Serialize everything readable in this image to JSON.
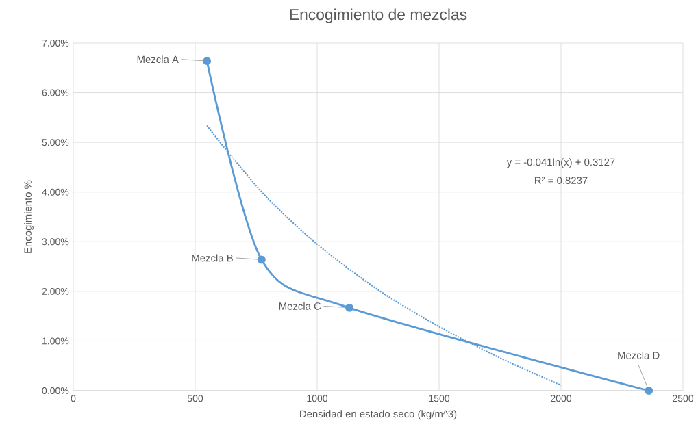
{
  "chart_data": {
    "type": "line",
    "title": "Encogimiento de mezclas",
    "xlabel": "Densidad en estado seco (kg/m^3)",
    "ylabel": "Encogimiento %",
    "xlim": [
      0,
      2500
    ],
    "xticks": [
      0,
      500,
      1000,
      1500,
      2000,
      2500
    ],
    "ylim": [
      0,
      0.07
    ],
    "yticks": [
      {
        "value": 0,
        "label": "0.00%"
      },
      {
        "value": 0.01,
        "label": "1.00%"
      },
      {
        "value": 0.02,
        "label": "2.00%"
      },
      {
        "value": 0.03,
        "label": "3.00%"
      },
      {
        "value": 0.04,
        "label": "4.00%"
      },
      {
        "value": 0.05,
        "label": "5.00%"
      },
      {
        "value": 0.06,
        "label": "6.00%"
      },
      {
        "value": 0.07,
        "label": "7.00%"
      }
    ],
    "grid": true,
    "series": [
      {
        "color": "#5b9bd5",
        "marker": "circle",
        "line_style": "solid",
        "x": [
          548,
          772,
          1132,
          2360
        ],
        "values": [
          0.0664,
          0.0264,
          0.0167,
          0
        ]
      },
      {
        "color": "#5b9bd5",
        "marker": "none",
        "line_style": "dotted",
        "x": [
          548,
          650,
          800,
          1000,
          1250,
          1500,
          1750,
          2000
        ],
        "values": [
          0.0534,
          0.0471,
          0.0386,
          0.0295,
          0.0203,
          0.0129,
          0.0066,
          0.0011
        ]
      }
    ],
    "annotations": [
      {
        "text": "Mezcla A",
        "x": 548,
        "y": 0.0664
      },
      {
        "text": "Mezcla B",
        "x": 772,
        "y": 0.0264
      },
      {
        "text": "Mezcla C",
        "x": 1132,
        "y": 0.0167
      },
      {
        "text": "Mezcla D",
        "x": 2360,
        "y": 0
      },
      "y = -0.041ln(x) + 0.3127",
      "R² = 0.8237"
    ]
  }
}
